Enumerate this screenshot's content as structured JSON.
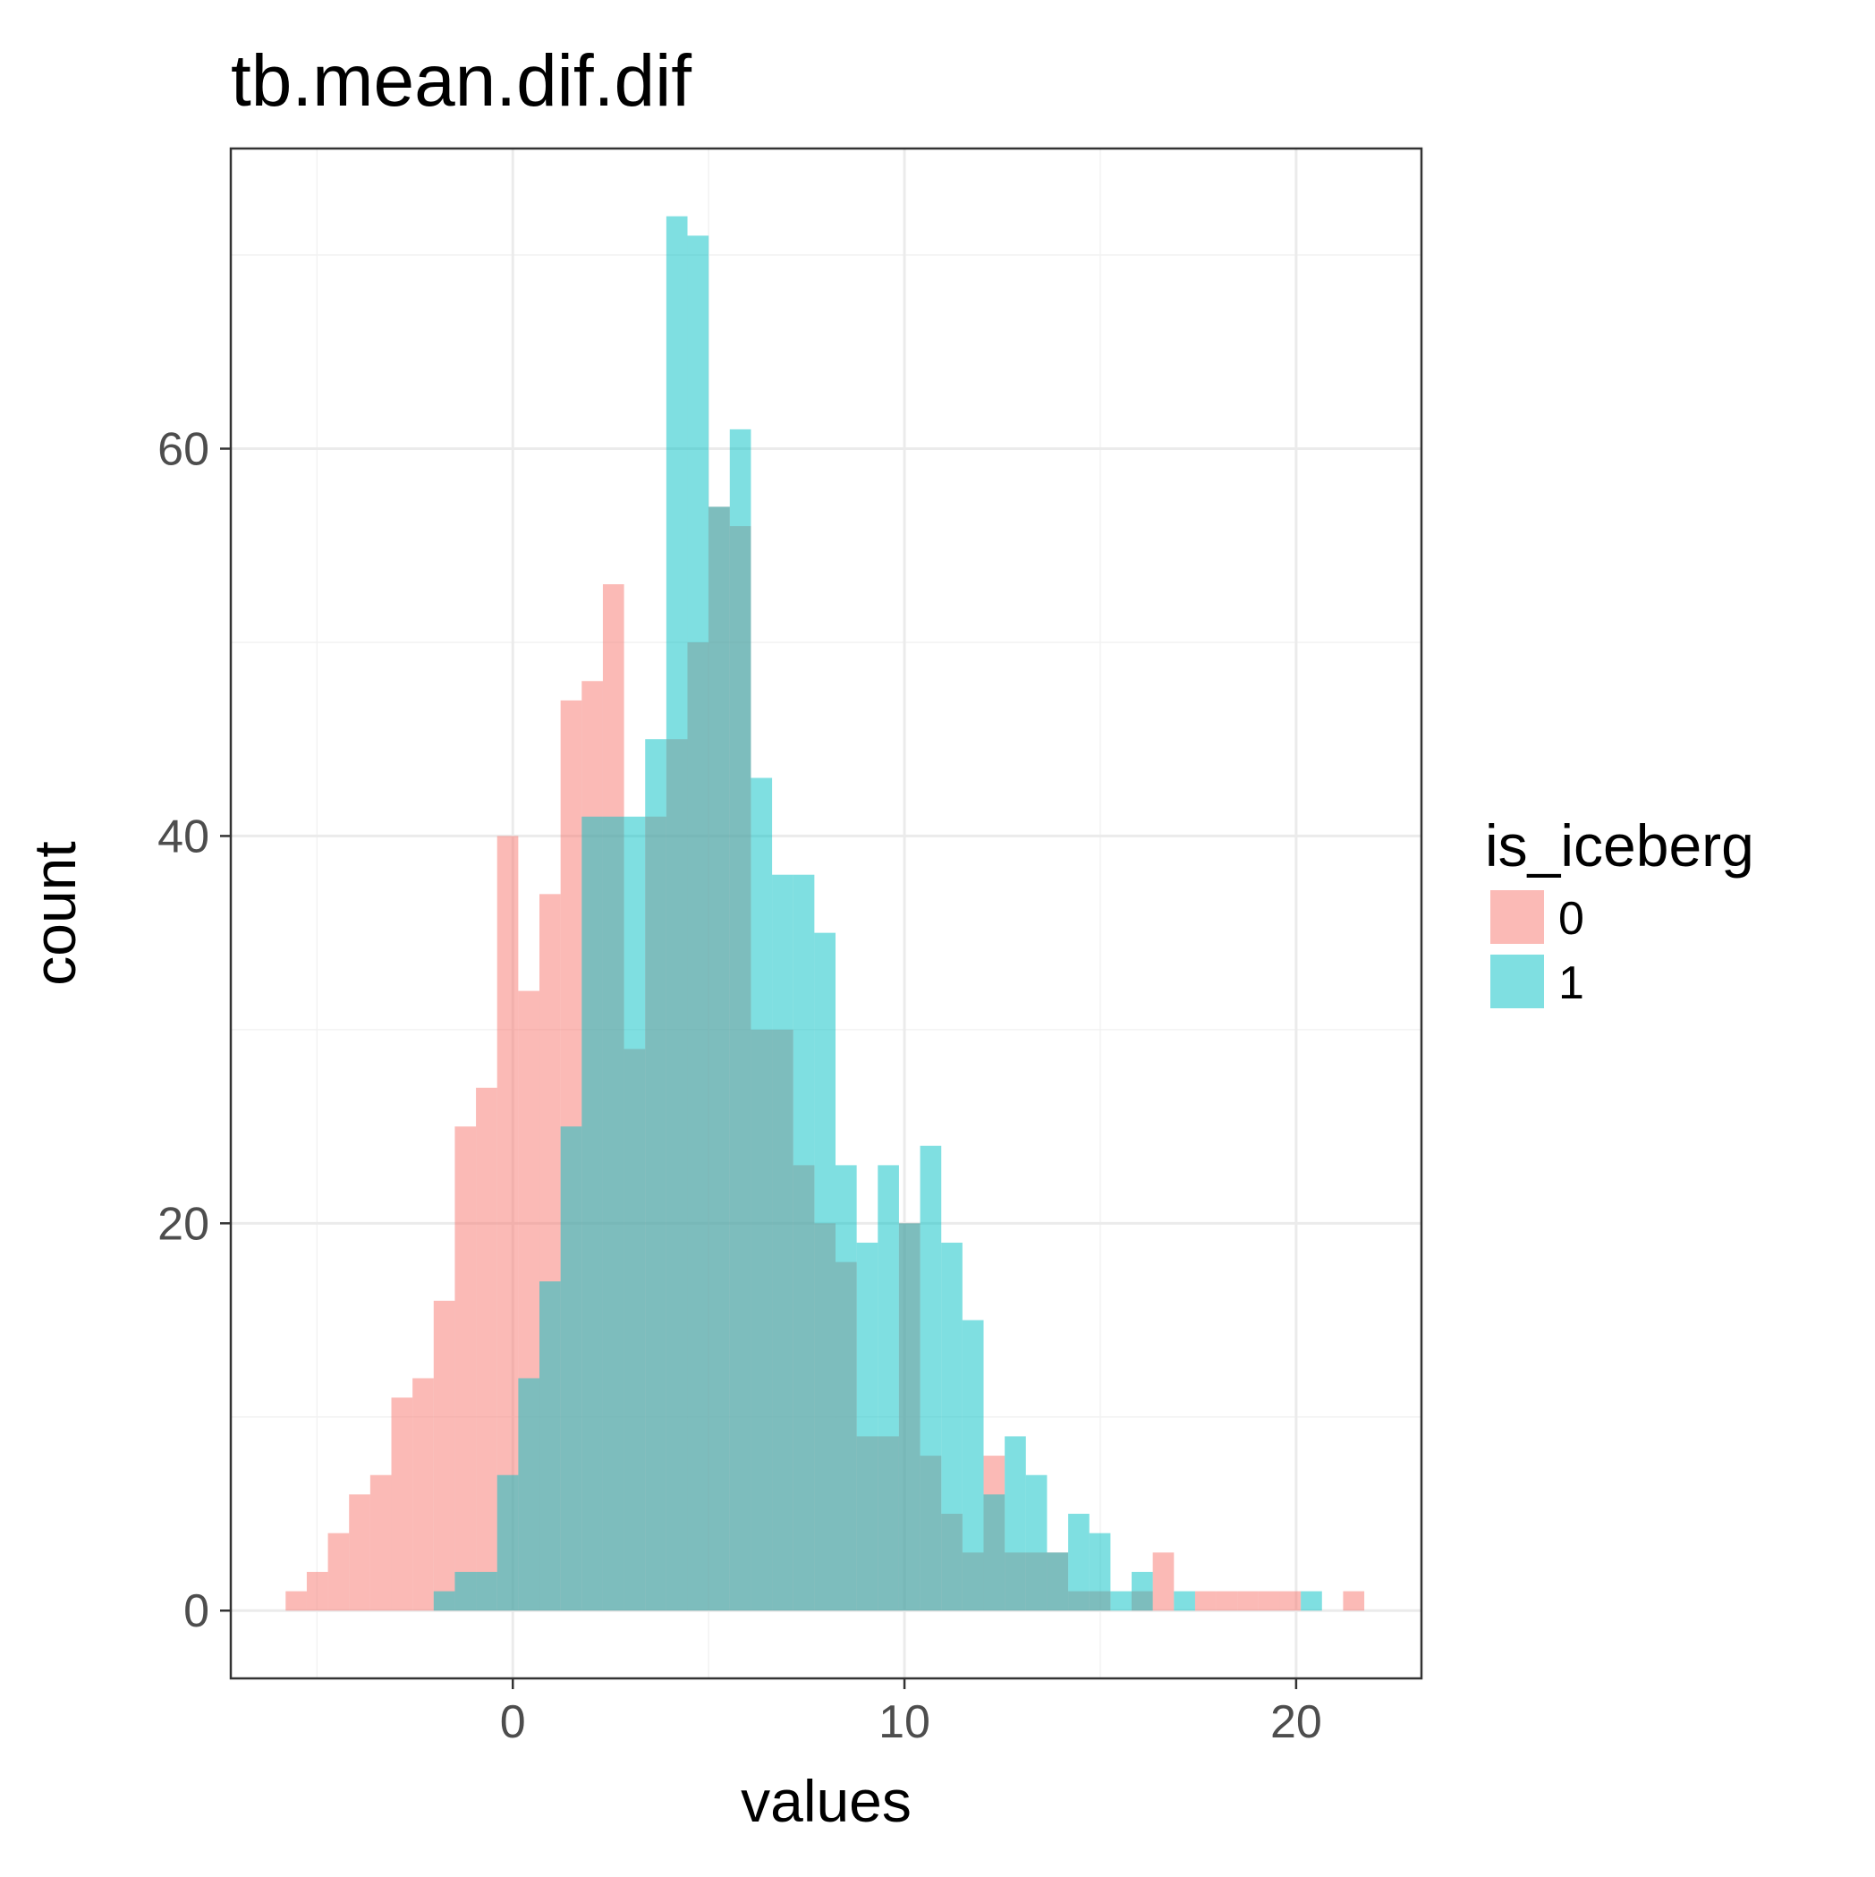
{
  "chart_data": {
    "type": "histogram",
    "title": "tb.mean.dif.dif",
    "xlabel": "values",
    "ylabel": "count",
    "xlim": [
      -7.2,
      23.2
    ],
    "ylim": [
      -3.5,
      75.5
    ],
    "x_ticks": [
      0,
      10,
      20
    ],
    "y_ticks": [
      0,
      20,
      40,
      60
    ],
    "grid": true,
    "bin_start": -5.8,
    "bin_width": 0.54,
    "legend": {
      "title": "is_iceberg",
      "position": "right"
    },
    "series": [
      {
        "name": "0",
        "color": "#F8766D",
        "counts": [
          1,
          2,
          4,
          6,
          7,
          11,
          12,
          16,
          25,
          27,
          40,
          32,
          37,
          47,
          48,
          53,
          29,
          41,
          45,
          50,
          57,
          56,
          30,
          30,
          23,
          20,
          18,
          9,
          9,
          20,
          8,
          5,
          3,
          8,
          3,
          3,
          3,
          1,
          1,
          0,
          1,
          3,
          0,
          1,
          1,
          1,
          1,
          1,
          0,
          0,
          1
        ]
      },
      {
        "name": "1",
        "color": "#00BFC4",
        "counts": [
          0,
          0,
          0,
          0,
          0,
          0,
          0,
          1,
          2,
          2,
          7,
          12,
          17,
          25,
          41,
          41,
          41,
          45,
          72,
          71,
          57,
          61,
          43,
          38,
          38,
          35,
          23,
          19,
          23,
          20,
          24,
          19,
          15,
          6,
          9,
          7,
          3,
          5,
          4,
          1,
          2,
          0,
          1,
          0,
          0,
          0,
          0,
          0,
          1,
          0,
          0
        ]
      }
    ]
  }
}
